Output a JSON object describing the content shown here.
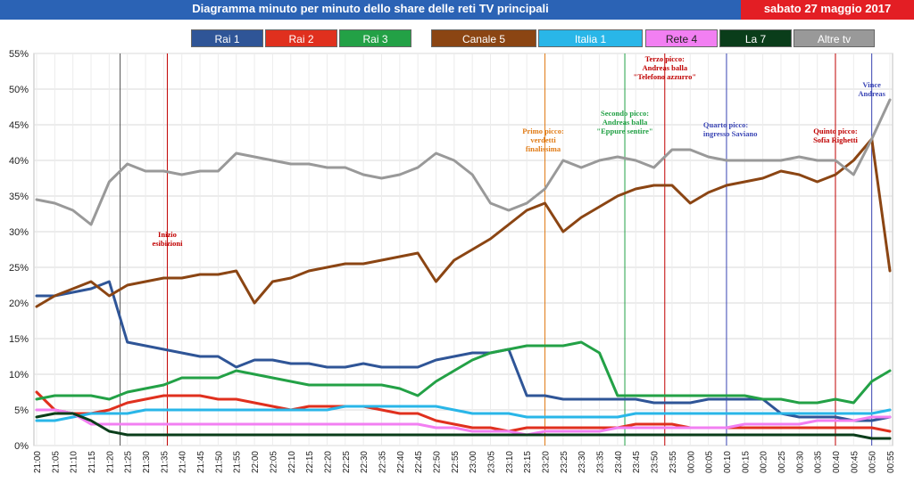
{
  "header": {
    "title": "Diagramma minuto per minuto dello share delle reti TV principali",
    "date": "sabato 27 maggio 2017"
  },
  "colors": {
    "header_bg": "#2b63b5",
    "date_bg": "#e31e24",
    "grid": "#d9d9d9"
  },
  "chart_data": {
    "type": "line",
    "title": "Diagramma minuto per minuto dello share delle reti TV principali",
    "xlabel": "",
    "ylabel": "",
    "ylim": [
      0,
      55
    ],
    "yticks": [
      "0%",
      "5%",
      "10%",
      "15%",
      "20%",
      "25%",
      "30%",
      "35%",
      "40%",
      "45%",
      "50%",
      "55%"
    ],
    "x": [
      "21:00",
      "21:05",
      "21:10",
      "21:15",
      "21:20",
      "21:25",
      "21:30",
      "21:35",
      "21:40",
      "21:45",
      "21:50",
      "21:55",
      "22:00",
      "22:05",
      "22:10",
      "22:15",
      "22:20",
      "22:25",
      "22:30",
      "22:35",
      "22:40",
      "22:45",
      "22:50",
      "22:55",
      "23:00",
      "23:05",
      "23:10",
      "23:15",
      "23:20",
      "23:25",
      "23:30",
      "23:35",
      "23:40",
      "23:45",
      "23:50",
      "23:55",
      "00:00",
      "00:05",
      "00:10",
      "00:15",
      "00:20",
      "00:25",
      "00:30",
      "00:35",
      "00:40",
      "00:45",
      "00:50",
      "00:55"
    ],
    "grid": true,
    "legend_position": "top",
    "series": [
      {
        "name": "Rai 1",
        "color": "#2f5597",
        "values": [
          21,
          21,
          21.5,
          22,
          23,
          14.5,
          14,
          13.5,
          13,
          12.5,
          12.5,
          11,
          12,
          12,
          11.5,
          11.5,
          11,
          11,
          11.5,
          11,
          11,
          11,
          12,
          12.5,
          13,
          13,
          13.5,
          7,
          7,
          6.5,
          6.5,
          6.5,
          6.5,
          6.5,
          6,
          6,
          6,
          6.5,
          6.5,
          6.5,
          6.5,
          4.5,
          4,
          4,
          4,
          3.5,
          3.5,
          4
        ]
      },
      {
        "name": "Rai 2",
        "color": "#e0301e",
        "values": [
          7.5,
          5,
          4.5,
          4.5,
          5,
          6,
          6.5,
          7,
          7,
          7,
          6.5,
          6.5,
          6,
          5.5,
          5,
          5.5,
          5.5,
          5.5,
          5.5,
          5,
          4.5,
          4.5,
          3.5,
          3,
          2.5,
          2.5,
          2,
          2.5,
          2.5,
          2.5,
          2.5,
          2.5,
          2.5,
          3,
          3,
          3,
          2.5,
          2.5,
          2.5,
          2.5,
          2.5,
          2.5,
          2.5,
          2.5,
          2.5,
          2.5,
          2.5,
          2
        ]
      },
      {
        "name": "Rai 3",
        "color": "#23a146",
        "values": [
          6.5,
          7,
          7,
          7,
          6.5,
          7.5,
          8,
          8.5,
          9.5,
          9.5,
          9.5,
          10.5,
          10,
          9.5,
          9,
          8.5,
          8.5,
          8.5,
          8.5,
          8.5,
          8,
          7,
          9,
          10.5,
          12,
          13,
          13.5,
          14,
          14,
          14,
          14.5,
          13,
          7,
          7,
          7,
          7,
          7,
          7,
          7,
          7,
          6.5,
          6.5,
          6,
          6,
          6.5,
          6,
          9,
          10.5
        ]
      },
      {
        "name": "Canale 5",
        "color": "#8b4513",
        "values": [
          19.5,
          21,
          22,
          23,
          21,
          22.5,
          23,
          23.5,
          23.5,
          24,
          24,
          24.5,
          20,
          23,
          23.5,
          24.5,
          25,
          25.5,
          25.5,
          26,
          26.5,
          27,
          23,
          26,
          27.5,
          29,
          31,
          33,
          34,
          30,
          32,
          33.5,
          35,
          36,
          36.5,
          36.5,
          34,
          35.5,
          36.5,
          37,
          37.5,
          38.5,
          38,
          37,
          38,
          40,
          43,
          24.5
        ]
      },
      {
        "name": "Italia 1",
        "color": "#29b6e8",
        "values": [
          3.5,
          3.5,
          4,
          4.5,
          4.5,
          4.5,
          5,
          5,
          5,
          5,
          5,
          5,
          5,
          5,
          5,
          5,
          5,
          5.5,
          5.5,
          5.5,
          5.5,
          5.5,
          5.5,
          5,
          4.5,
          4.5,
          4.5,
          4,
          4,
          4,
          4,
          4,
          4,
          4.5,
          4.5,
          4.5,
          4.5,
          4.5,
          4.5,
          4.5,
          4.5,
          4.5,
          4.5,
          4.5,
          4.5,
          4.5,
          4.5,
          5
        ]
      },
      {
        "name": "Rete 4",
        "color": "#f27ff2",
        "values": [
          5,
          5,
          4.5,
          3,
          3,
          3,
          3,
          3,
          3,
          3,
          3,
          3,
          3,
          3,
          3,
          3,
          3,
          3,
          3,
          3,
          3,
          3,
          2.5,
          2.5,
          2,
          2,
          2,
          1.5,
          2,
          2,
          2,
          2,
          2.5,
          2.5,
          2.5,
          2.5,
          2.5,
          2.5,
          2.5,
          3,
          3,
          3,
          3,
          3.5,
          3.5,
          3.5,
          4,
          4
        ]
      },
      {
        "name": "La 7",
        "color": "#0a3d1a",
        "values": [
          4,
          4.5,
          4.5,
          3.5,
          2,
          1.5,
          1.5,
          1.5,
          1.5,
          1.5,
          1.5,
          1.5,
          1.5,
          1.5,
          1.5,
          1.5,
          1.5,
          1.5,
          1.5,
          1.5,
          1.5,
          1.5,
          1.5,
          1.5,
          1.5,
          1.5,
          1.5,
          1.5,
          1.5,
          1.5,
          1.5,
          1.5,
          1.5,
          1.5,
          1.5,
          1.5,
          1.5,
          1.5,
          1.5,
          1.5,
          1.5,
          1.5,
          1.5,
          1.5,
          1.5,
          1.5,
          1,
          1
        ]
      },
      {
        "name": "Altre tv",
        "color": "#999999",
        "values": [
          34.5,
          34,
          33,
          31,
          37,
          39.5,
          38.5,
          38.5,
          38,
          38.5,
          38.5,
          41,
          40.5,
          40,
          39.5,
          39.5,
          39,
          39,
          38,
          37.5,
          38,
          39,
          41,
          40,
          38,
          34,
          33,
          34,
          36,
          40,
          39,
          40,
          40.5,
          40,
          39,
          41.5,
          41.5,
          40.5,
          40,
          40,
          40,
          40,
          40.5,
          40,
          40,
          38,
          43,
          48.5
        ]
      }
    ],
    "annotations": [
      {
        "time": "21:23",
        "lines": [],
        "color": "#555555"
      },
      {
        "time": "21:36",
        "lines": [
          "Inizio",
          "esibizioni"
        ],
        "color": "#c00000"
      },
      {
        "time": "23:20",
        "lines": [
          "Primo picco:",
          "verdetti",
          "finalissima"
        ],
        "color": "#e07b16"
      },
      {
        "time": "23:42",
        "lines": [
          "Secondo picco:",
          "Andreas balla",
          "\"Eppure sentire\""
        ],
        "color": "#23a146"
      },
      {
        "time": "23:53",
        "lines": [
          "Terzo picco:",
          "Andreas balla",
          "\"Telefono azzurro\""
        ],
        "color": "#c00000"
      },
      {
        "time": "00:10",
        "lines": [
          "Quarto picco:",
          "ingresso Saviano"
        ],
        "color": "#3b46b5"
      },
      {
        "time": "00:40",
        "lines": [
          "Quinto picco:",
          "Sofia Righetti"
        ],
        "color": "#c00000"
      },
      {
        "time": "00:50",
        "lines": [
          "Vince",
          "Andreas"
        ],
        "color": "#3b46b5"
      }
    ]
  }
}
